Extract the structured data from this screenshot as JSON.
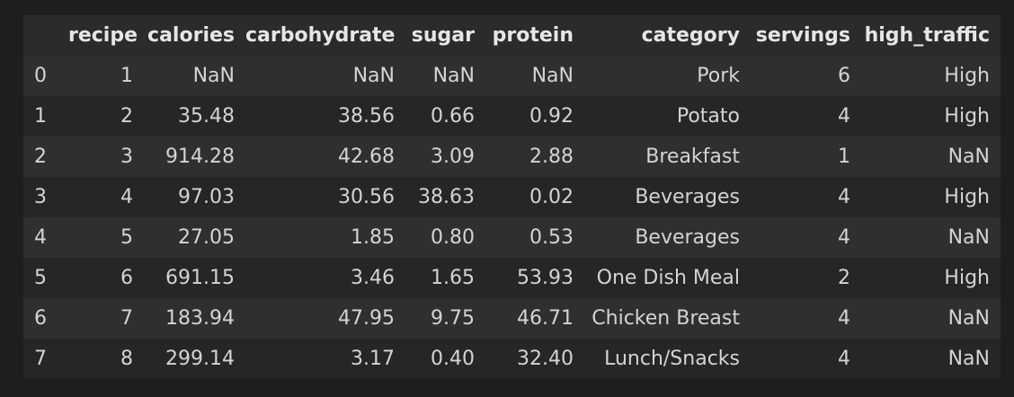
{
  "table": {
    "index_header": "",
    "columns": [
      "recipe",
      "calories",
      "carbohydrate",
      "sugar",
      "protein",
      "category",
      "servings",
      "high_traffic"
    ],
    "rows": [
      {
        "index": "0",
        "cells": [
          "1",
          "NaN",
          "NaN",
          "NaN",
          "NaN",
          "Pork",
          "6",
          "High"
        ]
      },
      {
        "index": "1",
        "cells": [
          "2",
          "35.48",
          "38.56",
          "0.66",
          "0.92",
          "Potato",
          "4",
          "High"
        ]
      },
      {
        "index": "2",
        "cells": [
          "3",
          "914.28",
          "42.68",
          "3.09",
          "2.88",
          "Breakfast",
          "1",
          "NaN"
        ]
      },
      {
        "index": "3",
        "cells": [
          "4",
          "97.03",
          "30.56",
          "38.63",
          "0.02",
          "Beverages",
          "4",
          "High"
        ]
      },
      {
        "index": "4",
        "cells": [
          "5",
          "27.05",
          "1.85",
          "0.80",
          "0.53",
          "Beverages",
          "4",
          "NaN"
        ]
      },
      {
        "index": "5",
        "cells": [
          "6",
          "691.15",
          "3.46",
          "1.65",
          "53.93",
          "One Dish Meal",
          "2",
          "High"
        ]
      },
      {
        "index": "6",
        "cells": [
          "7",
          "183.94",
          "47.95",
          "9.75",
          "46.71",
          "Chicken Breast",
          "4",
          "NaN"
        ]
      },
      {
        "index": "7",
        "cells": [
          "8",
          "299.14",
          "3.17",
          "0.40",
          "32.40",
          "Lunch/Snacks",
          "4",
          "NaN"
        ]
      }
    ]
  },
  "colors": {
    "page_background": "#1e1e1e",
    "header_background": "#2b2b2b",
    "row_background_odd": "#2f2f2f",
    "row_background_even": "#262626",
    "text": "#d4d4d4"
  }
}
